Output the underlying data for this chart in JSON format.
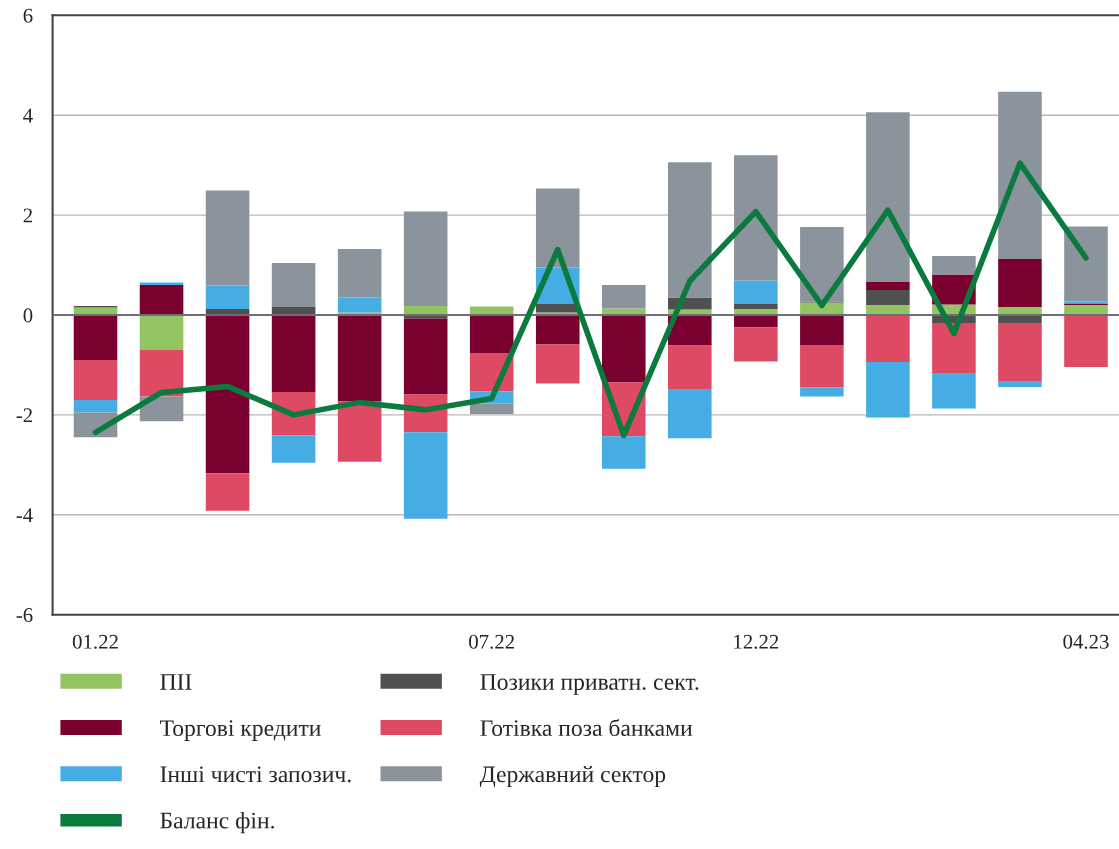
{
  "chart_data": {
    "type": "bar",
    "stacked": true,
    "categories": [
      "01.22",
      null,
      null,
      null,
      null,
      null,
      "07.22",
      null,
      null,
      null,
      "12.22",
      null,
      null,
      null,
      null,
      "04.23"
    ],
    "series": [
      {
        "name": "ПІІ",
        "color": "#92c462",
        "values": [
          0.15,
          -0.7,
          0,
          0,
          0.05,
          0.18,
          0.17,
          0.05,
          0.13,
          0.11,
          0.12,
          0.25,
          0.2,
          0.21,
          0.16,
          0.2
        ]
      },
      {
        "name": "Позики приватн. сект.",
        "color": "#505050",
        "values": [
          0.03,
          0,
          0.12,
          0.16,
          0,
          -0.07,
          0,
          0.17,
          0,
          0.24,
          0.1,
          0.02,
          0.3,
          -0.16,
          -0.16,
          0
        ]
      },
      {
        "name": "Торгові кредити",
        "color": "#7a0030",
        "values": [
          -0.9,
          0.6,
          -3.17,
          -1.54,
          -1.73,
          -1.52,
          -0.76,
          -0.59,
          -1.35,
          -0.61,
          -0.25,
          -0.6,
          0.16,
          0.6,
          0.96,
          0.03
        ]
      },
      {
        "name": "Готівка поза банками",
        "color": "#de4a63",
        "values": [
          -0.8,
          -0.93,
          -0.75,
          -0.87,
          -1.21,
          -0.76,
          -0.77,
          -0.78,
          -1.08,
          -0.87,
          -0.68,
          -0.85,
          -0.94,
          -1.0,
          -1.16,
          -1.04
        ]
      },
      {
        "name": "Інші чисті запозич.",
        "color": "#45ade3",
        "values": [
          -0.25,
          0.05,
          0.47,
          -0.55,
          0.3,
          -1.73,
          -0.24,
          0.73,
          -0.65,
          -0.99,
          0.47,
          -0.18,
          -1.11,
          -0.71,
          -0.12,
          0.04
        ]
      },
      {
        "name": "Державний сектор",
        "color": "#8b949c",
        "values": [
          -0.5,
          -0.5,
          1.9,
          0.88,
          0.97,
          1.89,
          -0.21,
          1.58,
          0.47,
          2.71,
          2.51,
          1.49,
          3.4,
          0.37,
          3.35,
          1.5
        ]
      },
      {
        "name": "Баланс фін.",
        "type": "line",
        "color": "#0a7a3e",
        "values": [
          -2.35,
          -1.55,
          -1.43,
          -2.0,
          -1.75,
          -1.9,
          -1.67,
          1.31,
          -2.41,
          0.68,
          2.07,
          0.19,
          2.1,
          -0.37,
          3.04,
          1.14
        ]
      }
    ],
    "ylim": [
      -6,
      6
    ],
    "yticks": [
      -6,
      -4,
      -2,
      0,
      2,
      4,
      6
    ],
    "grid": "y",
    "legend": "bottom",
    "marker": "none",
    "line_style": "solid",
    "ref_lines": [
      {
        "axis": "y",
        "value": 0,
        "color": "#6e6e78"
      }
    ]
  }
}
